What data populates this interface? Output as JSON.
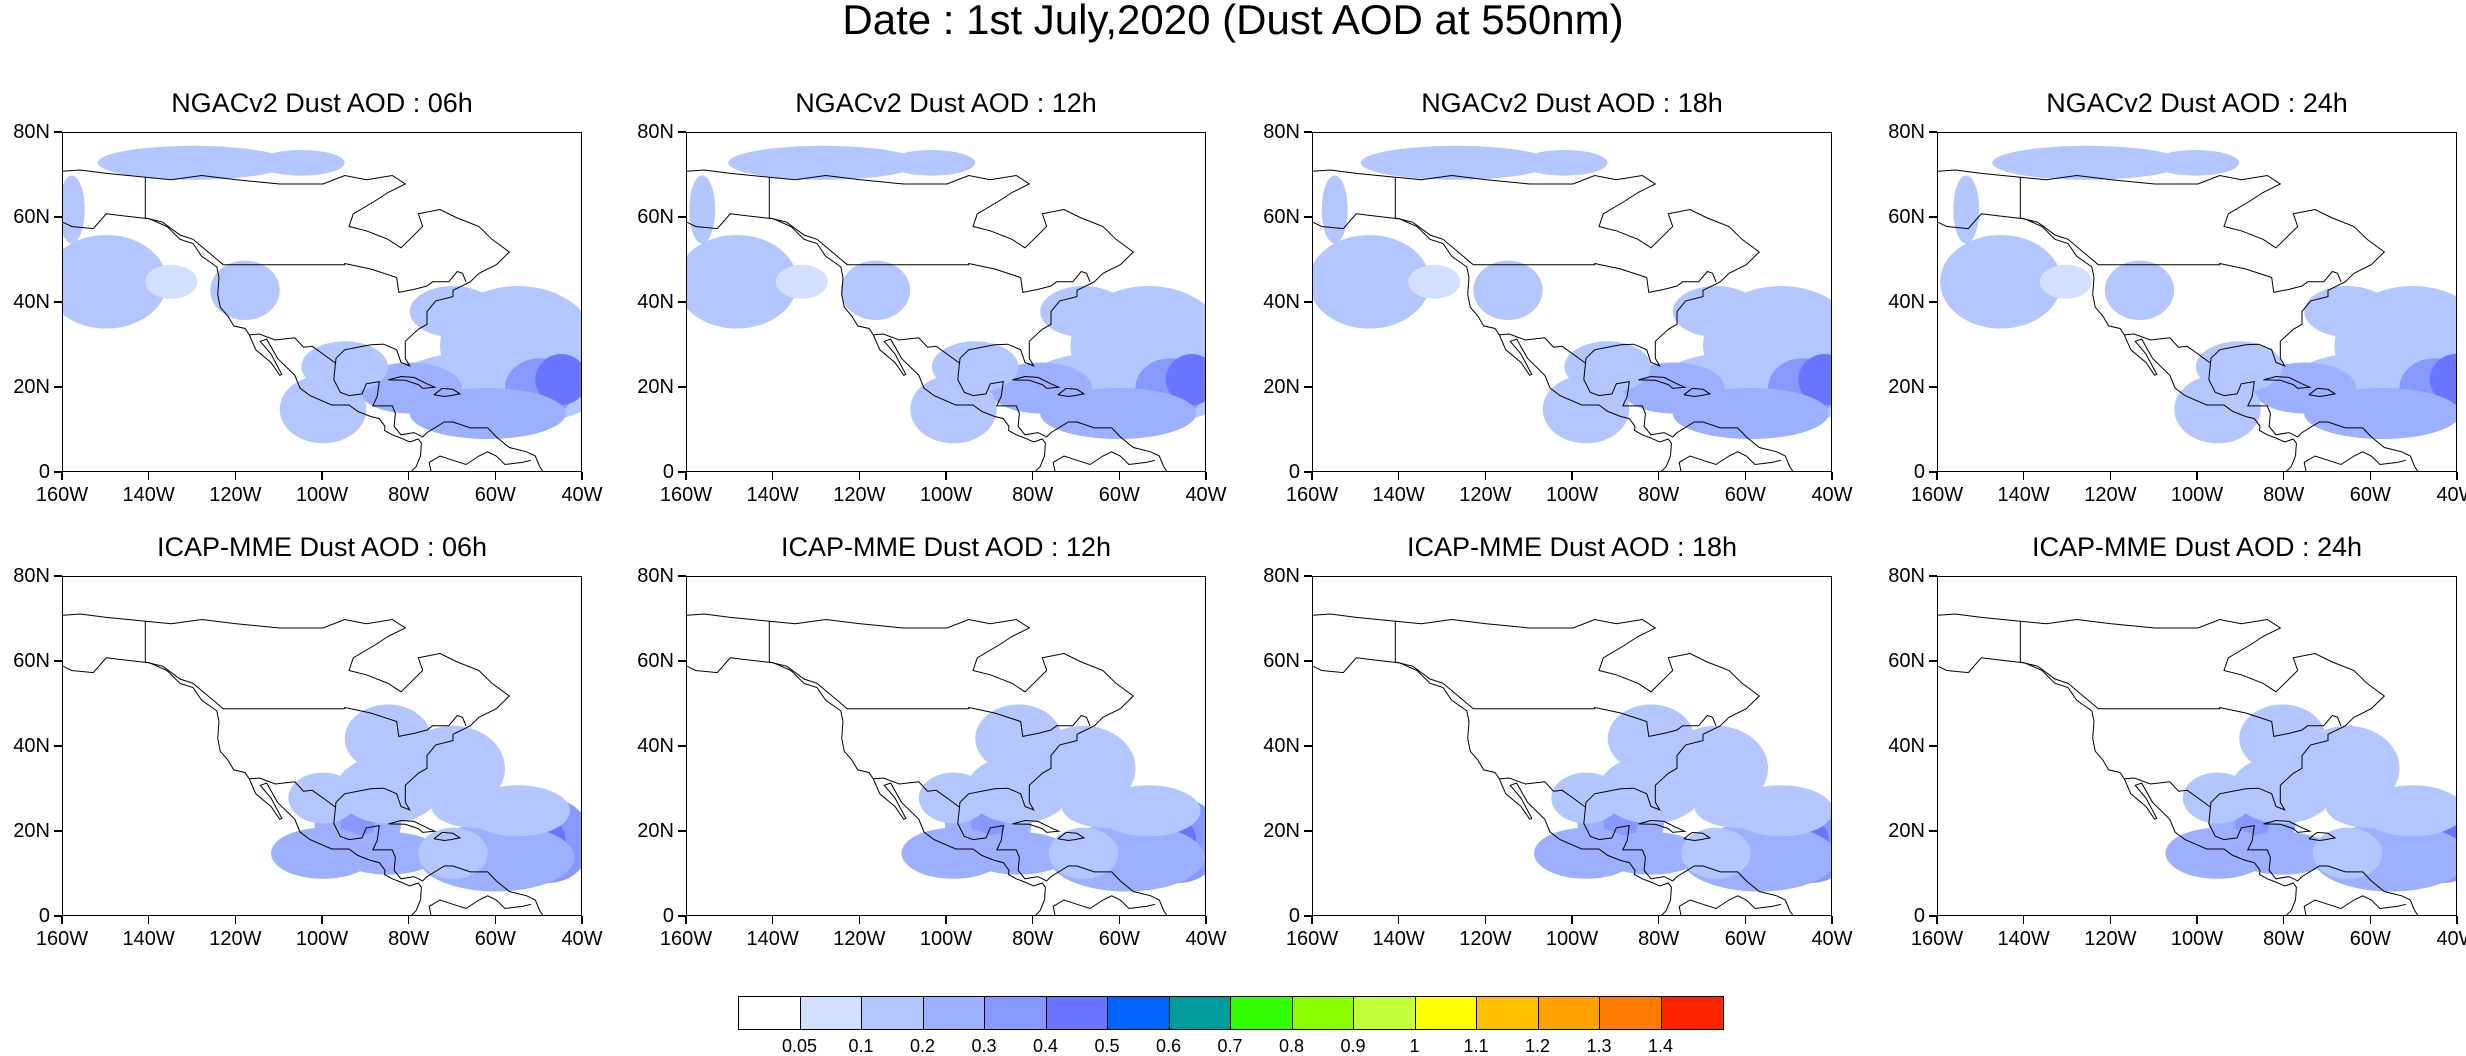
{
  "figure": {
    "title": "Date : 1st July,2020 (Dust AOD at 550nm)"
  },
  "axes": {
    "lat_labels": [
      "80N",
      "60N",
      "40N",
      "20N",
      "0"
    ],
    "lon_labels": [
      "160W",
      "140W",
      "120W",
      "100W",
      "80W",
      "60W",
      "40W"
    ],
    "lon_range": [
      -160,
      -40
    ],
    "lat_range": [
      0,
      80
    ]
  },
  "panels": [
    {
      "title": "NGACv2 Dust AOD : 06h",
      "model": "NGACv2",
      "hour": "06h",
      "row": 0,
      "col": 0
    },
    {
      "title": "NGACv2 Dust AOD : 12h",
      "model": "NGACv2",
      "hour": "12h",
      "row": 0,
      "col": 1
    },
    {
      "title": "NGACv2 Dust AOD : 18h",
      "model": "NGACv2",
      "hour": "18h",
      "row": 0,
      "col": 2
    },
    {
      "title": "NGACv2 Dust AOD : 24h",
      "model": "NGACv2",
      "hour": "24h",
      "row": 0,
      "col": 3
    },
    {
      "title": "ICAP-MME Dust AOD : 06h",
      "model": "ICAP-MME",
      "hour": "06h",
      "row": 1,
      "col": 0
    },
    {
      "title": "ICAP-MME Dust AOD : 12h",
      "model": "ICAP-MME",
      "hour": "12h",
      "row": 1,
      "col": 1
    },
    {
      "title": "ICAP-MME Dust AOD : 18h",
      "model": "ICAP-MME",
      "hour": "18h",
      "row": 1,
      "col": 2
    },
    {
      "title": "ICAP-MME Dust AOD : 24h",
      "model": "ICAP-MME",
      "hour": "24h",
      "row": 1,
      "col": 3
    }
  ],
  "colorbar": {
    "labels": [
      "0.05",
      "0.1",
      "0.2",
      "0.3",
      "0.4",
      "0.5",
      "0.6",
      "0.7",
      "0.8",
      "0.9",
      "1",
      "1.1",
      "1.2",
      "1.3",
      "1.4"
    ],
    "colors": [
      "#ffffff",
      "#d3dfff",
      "#b4c6ff",
      "#9cb0ff",
      "#8799ff",
      "#6a74ff",
      "#0064ff",
      "#009b9b",
      "#33ff00",
      "#88ff00",
      "#c3ff3a",
      "#ffff00",
      "#ffc000",
      "#ffa000",
      "#ff7a00",
      "#ff2400"
    ]
  }
}
